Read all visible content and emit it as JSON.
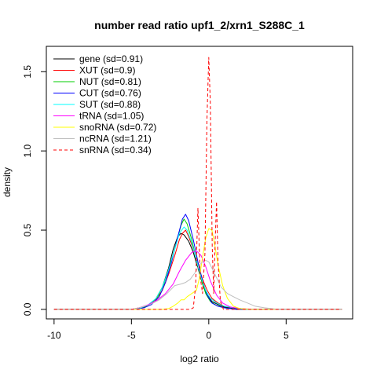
{
  "chart_data": {
    "type": "line",
    "title": "number read ratio upf1_2/xrn1_S288C_1",
    "xlabel": "log2 ratio",
    "ylabel": "density",
    "xlim": [
      -10.5,
      9.3
    ],
    "ylim": [
      -0.06,
      1.66
    ],
    "x_ticks": [
      -10,
      -5,
      0,
      5
    ],
    "x_tick_labels": [
      "-10",
      "-5",
      "0",
      "5"
    ],
    "y_ticks": [
      0.0,
      0.5,
      1.0,
      1.5
    ],
    "y_tick_labels": [
      "0.0",
      "0.5",
      "1.0",
      "1.5"
    ],
    "legend_position": "top-left",
    "grid": false,
    "series": [
      {
        "name": "gene (sd=0.91)",
        "color": "#000000",
        "dash": false,
        "points": [
          [
            -10,
            0
          ],
          [
            -5,
            0
          ],
          [
            -4.2,
            0.01
          ],
          [
            -3.8,
            0.03
          ],
          [
            -3.4,
            0.07
          ],
          [
            -3.0,
            0.14
          ],
          [
            -2.6,
            0.26
          ],
          [
            -2.3,
            0.38
          ],
          [
            -2.0,
            0.46
          ],
          [
            -1.8,
            0.48
          ],
          [
            -1.6,
            0.47
          ],
          [
            -1.3,
            0.43
          ],
          [
            -1.0,
            0.36
          ],
          [
            -0.7,
            0.26
          ],
          [
            -0.4,
            0.16
          ],
          [
            -0.1,
            0.09
          ],
          [
            0.2,
            0.05
          ],
          [
            0.6,
            0.03
          ],
          [
            1.0,
            0.015
          ],
          [
            1.6,
            0.005
          ],
          [
            2.5,
            0
          ],
          [
            8.6,
            0
          ]
        ]
      },
      {
        "name": "XUT (sd=0.9)",
        "color": "#ff0000",
        "dash": false,
        "points": [
          [
            -10,
            0
          ],
          [
            -5,
            0
          ],
          [
            -4.5,
            0.01
          ],
          [
            -4.0,
            0.02
          ],
          [
            -3.5,
            0.05
          ],
          [
            -3.0,
            0.12
          ],
          [
            -2.6,
            0.22
          ],
          [
            -2.2,
            0.34
          ],
          [
            -1.9,
            0.44
          ],
          [
            -1.7,
            0.48
          ],
          [
            -1.5,
            0.5
          ],
          [
            -1.3,
            0.46
          ],
          [
            -1.0,
            0.38
          ],
          [
            -0.7,
            0.28
          ],
          [
            -0.4,
            0.19
          ],
          [
            -0.1,
            0.12
          ],
          [
            0.2,
            0.07
          ],
          [
            0.6,
            0.04
          ],
          [
            1.0,
            0.02
          ],
          [
            1.6,
            0.01
          ],
          [
            2.5,
            0
          ],
          [
            8.6,
            0
          ]
        ]
      },
      {
        "name": "NUT (sd=0.81)",
        "color": "#00cc00",
        "dash": false,
        "points": [
          [
            -10,
            0
          ],
          [
            -5,
            0
          ],
          [
            -4.3,
            0.01
          ],
          [
            -3.8,
            0.03
          ],
          [
            -3.3,
            0.08
          ],
          [
            -2.9,
            0.16
          ],
          [
            -2.5,
            0.28
          ],
          [
            -2.1,
            0.42
          ],
          [
            -1.8,
            0.53
          ],
          [
            -1.6,
            0.57
          ],
          [
            -1.4,
            0.54
          ],
          [
            -1.1,
            0.44
          ],
          [
            -0.8,
            0.31
          ],
          [
            -0.5,
            0.19
          ],
          [
            -0.2,
            0.1
          ],
          [
            0.1,
            0.05
          ],
          [
            0.5,
            0.025
          ],
          [
            1.0,
            0.01
          ],
          [
            1.8,
            0
          ],
          [
            8.6,
            0
          ]
        ]
      },
      {
        "name": "CUT (sd=0.76)",
        "color": "#0000ff",
        "dash": false,
        "points": [
          [
            -10,
            0
          ],
          [
            -5,
            0
          ],
          [
            -4.2,
            0.01
          ],
          [
            -3.7,
            0.03
          ],
          [
            -3.2,
            0.08
          ],
          [
            -2.8,
            0.17
          ],
          [
            -2.4,
            0.3
          ],
          [
            -2.0,
            0.46
          ],
          [
            -1.7,
            0.57
          ],
          [
            -1.5,
            0.6
          ],
          [
            -1.3,
            0.56
          ],
          [
            -1.0,
            0.44
          ],
          [
            -0.7,
            0.3
          ],
          [
            -0.4,
            0.18
          ],
          [
            -0.1,
            0.09
          ],
          [
            0.2,
            0.04
          ],
          [
            0.6,
            0.02
          ],
          [
            1.0,
            0.01
          ],
          [
            1.8,
            0
          ],
          [
            8.6,
            0
          ]
        ]
      },
      {
        "name": "SUT (sd=0.88)",
        "color": "#00ffff",
        "dash": false,
        "points": [
          [
            -10,
            0
          ],
          [
            -5,
            0
          ],
          [
            -4.4,
            0.01
          ],
          [
            -3.9,
            0.03
          ],
          [
            -3.4,
            0.07
          ],
          [
            -3.0,
            0.14
          ],
          [
            -2.6,
            0.25
          ],
          [
            -2.2,
            0.38
          ],
          [
            -1.9,
            0.48
          ],
          [
            -1.6,
            0.52
          ],
          [
            -1.4,
            0.5
          ],
          [
            -1.1,
            0.42
          ],
          [
            -0.8,
            0.31
          ],
          [
            -0.5,
            0.2
          ],
          [
            -0.2,
            0.12
          ],
          [
            0.1,
            0.07
          ],
          [
            0.5,
            0.04
          ],
          [
            1.0,
            0.02
          ],
          [
            1.6,
            0.01
          ],
          [
            2.5,
            0
          ],
          [
            8.6,
            0
          ]
        ]
      },
      {
        "name": "tRNA (sd=1.05)",
        "color": "#ff00ff",
        "dash": false,
        "points": [
          [
            -10,
            0
          ],
          [
            -5,
            0
          ],
          [
            -4.5,
            0.01
          ],
          [
            -3.9,
            0.03
          ],
          [
            -3.3,
            0.06
          ],
          [
            -2.8,
            0.1
          ],
          [
            -2.3,
            0.16
          ],
          [
            -1.9,
            0.24
          ],
          [
            -1.5,
            0.31
          ],
          [
            -1.1,
            0.36
          ],
          [
            -0.8,
            0.37
          ],
          [
            -0.5,
            0.34
          ],
          [
            -0.2,
            0.27
          ],
          [
            0.1,
            0.18
          ],
          [
            0.5,
            0.09
          ],
          [
            0.9,
            0.04
          ],
          [
            1.4,
            0.015
          ],
          [
            2.0,
            0.005
          ],
          [
            3.0,
            0
          ],
          [
            8.6,
            0
          ]
        ]
      },
      {
        "name": "snoRNA (sd=0.72)",
        "color": "#ffff00",
        "dash": false,
        "points": [
          [
            -10,
            0
          ],
          [
            -5,
            0
          ],
          [
            -3.0,
            0
          ],
          [
            -2.6,
            0.005
          ],
          [
            -2.3,
            0.02
          ],
          [
            -2.0,
            0.04
          ],
          [
            -1.8,
            0.06
          ],
          [
            -1.6,
            0.06
          ],
          [
            -1.4,
            0.08
          ],
          [
            -1.1,
            0.1
          ],
          [
            -0.8,
            0.12
          ],
          [
            -0.6,
            0.2
          ],
          [
            -0.4,
            0.33
          ],
          [
            -0.2,
            0.45
          ],
          [
            0.0,
            0.51
          ],
          [
            0.2,
            0.5
          ],
          [
            0.4,
            0.4
          ],
          [
            0.6,
            0.28
          ],
          [
            0.9,
            0.15
          ],
          [
            1.2,
            0.07
          ],
          [
            1.6,
            0.02
          ],
          [
            2.0,
            0.005
          ],
          [
            2.8,
            0
          ],
          [
            8.6,
            0
          ]
        ]
      },
      {
        "name": "ncRNA (sd=1.21)",
        "color": "#bebebe",
        "dash": false,
        "points": [
          [
            -10,
            0
          ],
          [
            -5,
            0
          ],
          [
            -4.5,
            0.01
          ],
          [
            -3.8,
            0.03
          ],
          [
            -3.2,
            0.06
          ],
          [
            -2.7,
            0.1
          ],
          [
            -2.2,
            0.15
          ],
          [
            -1.8,
            0.16
          ],
          [
            -1.5,
            0.17
          ],
          [
            -1.2,
            0.19
          ],
          [
            -0.9,
            0.23
          ],
          [
            -0.6,
            0.28
          ],
          [
            -0.4,
            0.3
          ],
          [
            -0.2,
            0.31
          ],
          [
            0.0,
            0.3
          ],
          [
            0.2,
            0.26
          ],
          [
            0.5,
            0.2
          ],
          [
            0.8,
            0.14
          ],
          [
            1.2,
            0.1
          ],
          [
            1.6,
            0.08
          ],
          [
            2.0,
            0.06
          ],
          [
            2.5,
            0.04
          ],
          [
            3.0,
            0.02
          ],
          [
            3.6,
            0.01
          ],
          [
            4.5,
            0
          ],
          [
            8.6,
            0
          ]
        ]
      },
      {
        "name": "snRNA (sd=0.34)",
        "color": "#ff0000",
        "dash": true,
        "points": [
          [
            -10,
            0
          ],
          [
            -5,
            0
          ],
          [
            -1.2,
            0
          ],
          [
            -1.0,
            0.01
          ],
          [
            -0.85,
            0.15
          ],
          [
            -0.7,
            0.64
          ],
          [
            -0.55,
            0.2
          ],
          [
            -0.4,
            0.1
          ],
          [
            -0.25,
            0.35
          ],
          [
            -0.12,
            1.2
          ],
          [
            0.0,
            1.59
          ],
          [
            0.1,
            1.3
          ],
          [
            0.22,
            0.4
          ],
          [
            0.32,
            0.1
          ],
          [
            0.42,
            0.45
          ],
          [
            0.5,
            0.68
          ],
          [
            0.6,
            0.3
          ],
          [
            0.75,
            0.05
          ],
          [
            0.95,
            0
          ],
          [
            8.6,
            0
          ]
        ]
      }
    ]
  }
}
